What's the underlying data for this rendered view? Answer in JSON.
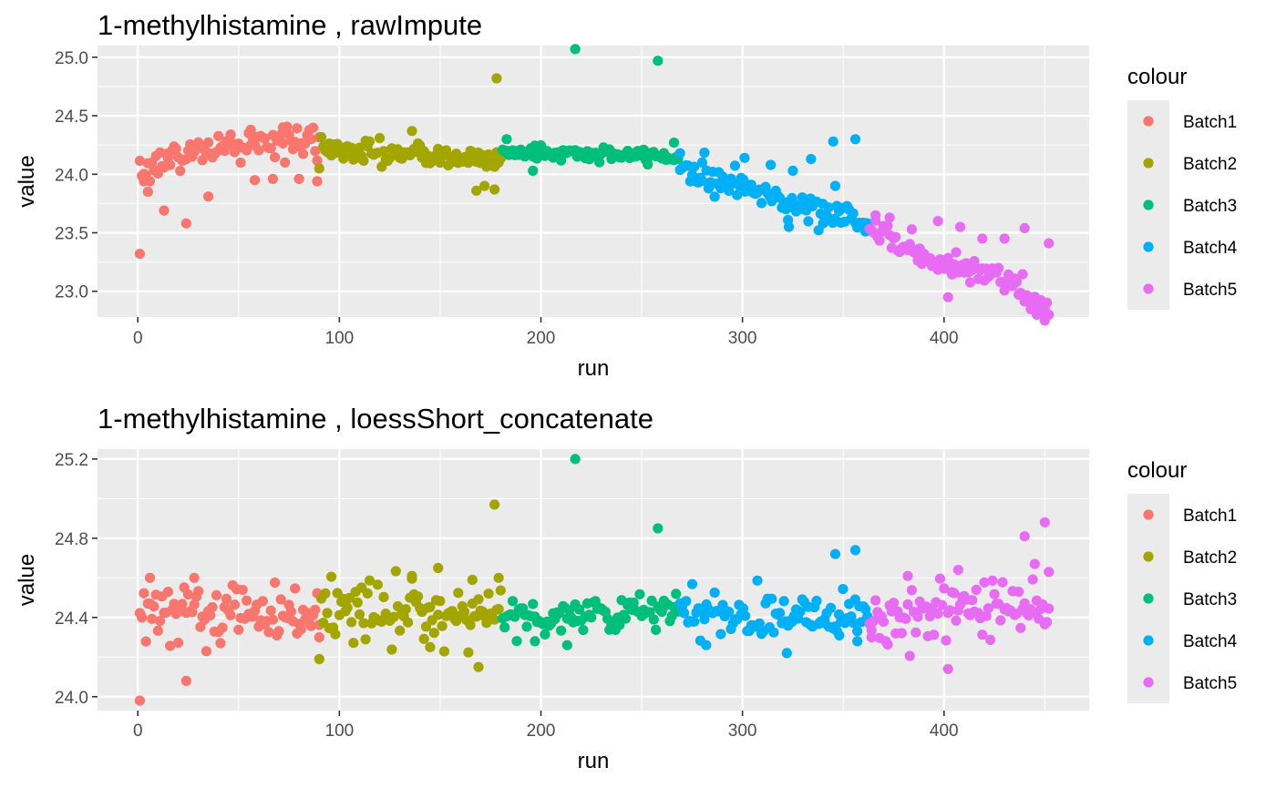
{
  "chart_data": [
    {
      "type": "scatter",
      "title": "1-methylhistamine ,  rawImpute",
      "xlabel": "run",
      "ylabel": "value",
      "xlim": [
        -20,
        472
      ],
      "ylim": [
        22.78,
        25.1
      ],
      "xticks": [
        0,
        100,
        200,
        300,
        400
      ],
      "yticks": [
        23.0,
        23.5,
        24.0,
        24.5,
        25.0
      ],
      "ytick_labels": [
        "23.0",
        "23.5",
        "24.0",
        "24.5",
        "25.0"
      ],
      "grid": true,
      "legend": {
        "title": "colour",
        "position": "right"
      },
      "series": [
        {
          "name": "Batch1",
          "color": "#F8766D",
          "x_range": [
            1,
            90
          ],
          "count": 90,
          "trend": [
            [
              1,
              24.05
            ],
            [
              30,
              24.2
            ],
            [
              60,
              24.27
            ],
            [
              90,
              24.27
            ]
          ],
          "noise": 0.07,
          "outliers": [
            [
              1,
              23.32
            ],
            [
              3,
              23.94
            ],
            [
              5,
              23.85
            ],
            [
              13,
              23.69
            ],
            [
              24,
              23.58
            ],
            [
              35,
              23.81
            ],
            [
              43,
              24.2
            ],
            [
              56,
              24.38
            ],
            [
              58,
              23.95
            ],
            [
              67,
              23.96
            ],
            [
              72,
              24.4
            ],
            [
              80,
              23.96
            ],
            [
              89,
              23.94
            ]
          ]
        },
        {
          "name": "Batch2",
          "color": "#A3A500",
          "x_range": [
            91,
            180
          ],
          "count": 90,
          "trend": [
            [
              91,
              24.22
            ],
            [
              130,
              24.17
            ],
            [
              180,
              24.12
            ]
          ],
          "noise": 0.05,
          "outliers": [
            [
              90,
              24.05
            ],
            [
              136,
              24.37
            ],
            [
              168,
              23.86
            ],
            [
              172,
              23.9
            ],
            [
              177,
              23.87
            ],
            [
              178,
              24.82
            ]
          ]
        },
        {
          "name": "Batch3",
          "color": "#00BF7D",
          "x_range": [
            181,
            268
          ],
          "count": 88,
          "trend": [
            [
              181,
              24.2
            ],
            [
              225,
              24.17
            ],
            [
              268,
              24.15
            ]
          ],
          "noise": 0.03,
          "outliers": [
            [
              183,
              24.3
            ],
            [
              196,
              24.03
            ],
            [
              217,
              25.07
            ],
            [
              258,
              24.97
            ],
            [
              266,
              24.27
            ]
          ]
        },
        {
          "name": "Batch4",
          "color": "#00B0F6",
          "x_range": [
            269,
            362
          ],
          "count": 93,
          "trend": [
            [
              269,
              24.05
            ],
            [
              300,
              23.9
            ],
            [
              330,
              23.72
            ],
            [
              362,
              23.6
            ]
          ],
          "noise": 0.06,
          "outliers": [
            [
              269,
              24.18
            ],
            [
              280,
              24.1
            ],
            [
              301,
              24.14
            ],
            [
              314,
              24.08
            ],
            [
              323,
              23.55
            ],
            [
              325,
              24.03
            ],
            [
              334,
              24.13
            ],
            [
              345,
              24.28
            ],
            [
              346,
              23.9
            ],
            [
              356,
              24.3
            ],
            [
              340,
              23.58
            ]
          ]
        },
        {
          "name": "Batch5",
          "color": "#E76BF3",
          "x_range": [
            363,
            452
          ],
          "count": 90,
          "trend": [
            [
              363,
              23.55
            ],
            [
              390,
              23.28
            ],
            [
              420,
              23.18
            ],
            [
              452,
              22.85
            ]
          ],
          "noise": 0.06,
          "outliers": [
            [
              366,
              23.65
            ],
            [
              373,
              23.63
            ],
            [
              384,
              23.53
            ],
            [
              397,
              23.6
            ],
            [
              402,
              22.95
            ],
            [
              408,
              23.55
            ],
            [
              419,
              23.45
            ],
            [
              430,
              23.45
            ],
            [
              440,
              23.54
            ],
            [
              450,
              22.75
            ],
            [
              452,
              23.41
            ]
          ]
        }
      ]
    },
    {
      "type": "scatter",
      "title": "1-methylhistamine ,  loessShort_concatenate",
      "xlabel": "run",
      "ylabel": "value",
      "xlim": [
        -20,
        472
      ],
      "ylim": [
        23.93,
        25.25
      ],
      "xticks": [
        0,
        100,
        200,
        300,
        400
      ],
      "yticks": [
        24.0,
        24.4,
        24.8,
        25.2
      ],
      "ytick_labels": [
        "24.0",
        "24.4",
        "24.8",
        "25.2"
      ],
      "grid": true,
      "legend": {
        "title": "colour",
        "position": "right"
      },
      "series": [
        {
          "name": "Batch1",
          "color": "#F8766D",
          "x_range": [
            1,
            90
          ],
          "count": 90,
          "trend": [
            [
              1,
              24.43
            ],
            [
              90,
              24.43
            ]
          ],
          "noise": 0.07,
          "outliers": [
            [
              1,
              23.98
            ],
            [
              6,
              24.6
            ],
            [
              24,
              24.08
            ],
            [
              28,
              24.6
            ],
            [
              34,
              24.23
            ],
            [
              90,
              24.3
            ]
          ]
        },
        {
          "name": "Batch2",
          "color": "#A3A500",
          "x_range": [
            91,
            180
          ],
          "count": 90,
          "trend": [
            [
              91,
              24.43
            ],
            [
              180,
              24.43
            ]
          ],
          "noise": 0.08,
          "outliers": [
            [
              90,
              24.19
            ],
            [
              136,
              24.61
            ],
            [
              145,
              24.25
            ],
            [
              149,
              24.65
            ],
            [
              166,
              24.59
            ],
            [
              169,
              24.15
            ],
            [
              177,
              24.97
            ],
            [
              179,
              24.6
            ]
          ]
        },
        {
          "name": "Batch3",
          "color": "#00BF7D",
          "x_range": [
            181,
            268
          ],
          "count": 88,
          "trend": [
            [
              181,
              24.4
            ],
            [
              268,
              24.43
            ]
          ],
          "noise": 0.05,
          "outliers": [
            [
              197,
              24.28
            ],
            [
              213,
              24.26
            ],
            [
              217,
              25.2
            ],
            [
              258,
              24.85
            ]
          ]
        },
        {
          "name": "Batch4",
          "color": "#00B0F6",
          "x_range": [
            269,
            362
          ],
          "count": 93,
          "trend": [
            [
              269,
              24.41
            ],
            [
              362,
              24.43
            ]
          ],
          "noise": 0.06,
          "outliers": [
            [
              282,
              24.26
            ],
            [
              322,
              24.22
            ],
            [
              346,
              24.72
            ],
            [
              348,
              24.31
            ],
            [
              356,
              24.74
            ],
            [
              357,
              24.28
            ]
          ]
        },
        {
          "name": "Batch5",
          "color": "#E76BF3",
          "x_range": [
            363,
            452
          ],
          "count": 90,
          "trend": [
            [
              363,
              24.4
            ],
            [
              452,
              24.45
            ]
          ],
          "noise": 0.08,
          "outliers": [
            [
              364,
              24.3
            ],
            [
              382,
              24.61
            ],
            [
              402,
              24.14
            ],
            [
              407,
              24.64
            ],
            [
              440,
              24.81
            ],
            [
              445,
              24.67
            ],
            [
              450,
              24.88
            ],
            [
              452,
              24.63
            ]
          ]
        }
      ]
    }
  ]
}
